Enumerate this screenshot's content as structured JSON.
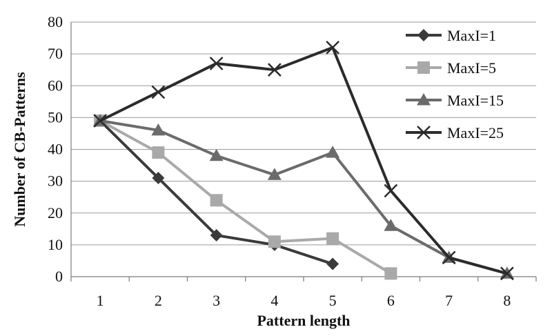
{
  "chart_data": {
    "type": "line",
    "xlabel": "Pattern length",
    "ylabel": "Number of CB-Patterns",
    "x": [
      1,
      2,
      3,
      4,
      5,
      6,
      7,
      8
    ],
    "ylim": [
      0,
      80
    ],
    "yticks": [
      0,
      10,
      20,
      30,
      40,
      50,
      60,
      70,
      80
    ],
    "grid": true,
    "legend_position": "top-right",
    "series": [
      {
        "name": "MaxI=1",
        "x": [
          1,
          2,
          3,
          4,
          5
        ],
        "values": [
          49,
          31,
          13,
          10,
          4
        ],
        "color": "#3a3a3a",
        "marker": "diamond"
      },
      {
        "name": "MaxI=5",
        "x": [
          1,
          2,
          3,
          4,
          5,
          6
        ],
        "values": [
          49,
          39,
          24,
          11,
          12,
          1
        ],
        "color": "#a9a9a9",
        "marker": "square"
      },
      {
        "name": "MaxI=15",
        "x": [
          1,
          2,
          3,
          4,
          5,
          6,
          7,
          8
        ],
        "values": [
          49,
          46,
          38,
          32,
          39,
          16,
          6,
          1
        ],
        "color": "#6b6b6b",
        "marker": "triangle"
      },
      {
        "name": "MaxI=25",
        "x": [
          1,
          2,
          3,
          4,
          5,
          6,
          7,
          8
        ],
        "values": [
          49,
          58,
          67,
          65,
          72,
          27,
          6,
          1
        ],
        "color": "#2b2b2b",
        "marker": "x"
      }
    ]
  }
}
